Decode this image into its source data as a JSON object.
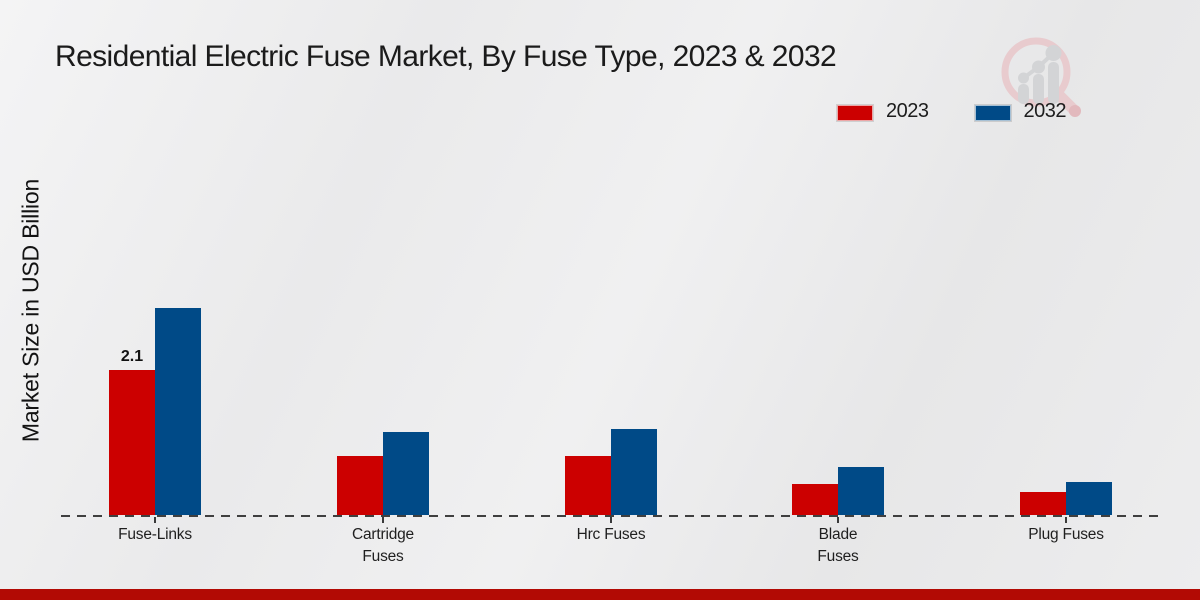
{
  "title": "Residential Electric Fuse Market, By Fuse Type, 2023 & 2032",
  "legend": {
    "items": [
      {
        "label": "2023",
        "color": "#cc0000"
      },
      {
        "label": "2032",
        "color": "#004a87"
      }
    ]
  },
  "chart_data": {
    "type": "bar",
    "title": "Residential Electric Fuse Market, By Fuse Type, 2023 & 2032",
    "xlabel": "",
    "ylabel": "Market Size in USD Billion",
    "categories": [
      "Fuse-Links",
      "Cartridge\nFuses",
      "Hrc Fuses",
      "Blade\nFuses",
      "Plug Fuses"
    ],
    "series": [
      {
        "name": "2023",
        "color": "#cc0000",
        "values": [
          2.1,
          0.85,
          0.85,
          0.45,
          0.33
        ]
      },
      {
        "name": "2032",
        "color": "#004a87",
        "values": [
          3.0,
          1.2,
          1.25,
          0.7,
          0.48
        ]
      }
    ],
    "annotations": [
      {
        "series": "2023",
        "category_index": 0,
        "text": "2.1"
      }
    ],
    "ylim": [
      0,
      3.2
    ],
    "grid": false,
    "legend_position": "upper right",
    "baseline_style": "dashed",
    "axis_color": "#3f3f3f"
  },
  "watermark": {
    "icon": "magnifier-bar-chart-logo"
  },
  "footer": {
    "bar_color": "#b20a04"
  }
}
